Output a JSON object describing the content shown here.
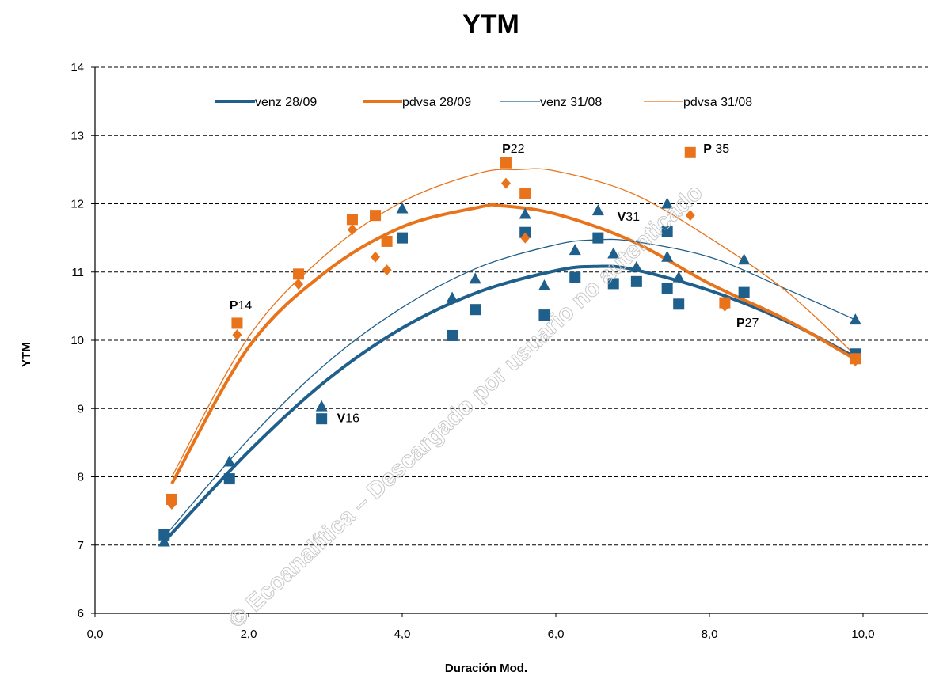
{
  "chart_data": {
    "type": "scatter",
    "title": "YTM",
    "xlabel": "Duración Mod.",
    "ylabel": "YTM",
    "xlim": [
      0,
      10.8
    ],
    "ylim": [
      6,
      14
    ],
    "xticks": [
      0,
      2,
      4,
      6,
      8,
      10
    ],
    "xtick_labels": [
      "0,0",
      "2,0",
      "4,0",
      "6,0",
      "8,0",
      "10,0"
    ],
    "yticks": [
      6,
      7,
      8,
      9,
      10,
      11,
      12,
      13,
      14
    ],
    "ytick_labels": [
      "6",
      "7",
      "8",
      "9",
      "10",
      "11",
      "12",
      "13",
      "14"
    ],
    "grid": "horizontal-dashed",
    "legend_position": "top",
    "colors": {
      "venz": "#1f5f8b",
      "pdvsa": "#e8731a"
    },
    "series": [
      {
        "name": "venz 28/09",
        "kind": "markers+trend",
        "marker": "square",
        "color": "#1f5f8b",
        "line_weight": "thick",
        "points": [
          [
            0.9,
            7.15
          ],
          [
            1.75,
            7.97
          ],
          [
            2.95,
            8.85
          ],
          [
            4.0,
            11.5
          ],
          [
            4.65,
            10.07
          ],
          [
            4.95,
            10.45
          ],
          [
            5.6,
            11.58
          ],
          [
            5.85,
            10.37
          ],
          [
            6.25,
            10.92
          ],
          [
            6.55,
            11.5
          ],
          [
            6.75,
            10.83
          ],
          [
            7.05,
            10.86
          ],
          [
            7.45,
            10.76
          ],
          [
            7.45,
            11.6
          ],
          [
            7.6,
            10.53
          ],
          [
            8.45,
            10.7
          ],
          [
            9.9,
            9.8
          ]
        ],
        "trend": {
          "x_range": [
            0.9,
            9.9
          ],
          "points": [
            [
              0.9,
              7.05
            ],
            [
              2.0,
              8.37
            ],
            [
              3.0,
              9.4
            ],
            [
              4.0,
              10.18
            ],
            [
              5.0,
              10.71
            ],
            [
              6.0,
              11.02
            ],
            [
              6.5,
              11.08
            ],
            [
              7.0,
              11.04
            ],
            [
              8.0,
              10.73
            ],
            [
              9.0,
              10.28
            ],
            [
              9.9,
              9.75
            ]
          ]
        }
      },
      {
        "name": "pdvsa 28/09",
        "kind": "markers+trend",
        "marker": "square",
        "color": "#e8731a",
        "line_weight": "thick",
        "points": [
          [
            1.0,
            7.67
          ],
          [
            1.85,
            10.25
          ],
          [
            2.65,
            10.97
          ],
          [
            3.35,
            11.77
          ],
          [
            3.65,
            11.83
          ],
          [
            3.8,
            11.45
          ],
          [
            5.35,
            12.6
          ],
          [
            5.6,
            12.15
          ],
          [
            7.75,
            12.75
          ],
          [
            8.2,
            10.55
          ],
          [
            9.9,
            9.73
          ]
        ],
        "trend": {
          "x_range": [
            1.0,
            9.9
          ],
          "points": [
            [
              1.0,
              7.9
            ],
            [
              2.0,
              9.9
            ],
            [
              3.0,
              11.0
            ],
            [
              4.0,
              11.66
            ],
            [
              5.0,
              11.95
            ],
            [
              5.3,
              11.97
            ],
            [
              6.0,
              11.85
            ],
            [
              7.0,
              11.45
            ],
            [
              8.0,
              10.83
            ],
            [
              9.0,
              10.3
            ],
            [
              9.9,
              9.72
            ]
          ]
        }
      },
      {
        "name": "venz 31/08",
        "kind": "markers+trend",
        "marker": "triangle",
        "color": "#1f5f8b",
        "line_weight": "thin",
        "points": [
          [
            0.9,
            7.05
          ],
          [
            1.75,
            8.22
          ],
          [
            2.95,
            9.03
          ],
          [
            4.0,
            11.93
          ],
          [
            4.65,
            10.62
          ],
          [
            4.95,
            10.9
          ],
          [
            5.6,
            11.85
          ],
          [
            5.85,
            10.8
          ],
          [
            6.25,
            11.32
          ],
          [
            6.55,
            11.9
          ],
          [
            6.75,
            11.27
          ],
          [
            7.05,
            11.07
          ],
          [
            7.45,
            12.0
          ],
          [
            7.45,
            11.22
          ],
          [
            7.6,
            10.92
          ],
          [
            8.45,
            11.18
          ],
          [
            9.9,
            10.3
          ]
        ],
        "trend": {
          "x_range": [
            0.9,
            9.9
          ],
          "points": [
            [
              0.9,
              7.12
            ],
            [
              2.0,
              8.55
            ],
            [
              3.0,
              9.65
            ],
            [
              4.0,
              10.48
            ],
            [
              5.0,
              11.07
            ],
            [
              6.0,
              11.4
            ],
            [
              6.5,
              11.47
            ],
            [
              7.0,
              11.45
            ],
            [
              8.0,
              11.22
            ],
            [
              9.0,
              10.75
            ],
            [
              9.9,
              10.3
            ]
          ]
        }
      },
      {
        "name": "pdvsa 31/08",
        "kind": "markers+trend",
        "marker": "diamond",
        "color": "#e8731a",
        "line_weight": "thin",
        "points": [
          [
            1.0,
            7.6
          ],
          [
            1.85,
            10.08
          ],
          [
            2.65,
            10.82
          ],
          [
            3.35,
            11.62
          ],
          [
            3.65,
            11.22
          ],
          [
            3.8,
            11.03
          ],
          [
            5.35,
            12.3
          ],
          [
            5.6,
            11.5
          ],
          [
            7.75,
            11.83
          ],
          [
            8.2,
            10.5
          ],
          [
            9.9,
            9.7
          ]
        ],
        "trend": {
          "x_range": [
            1.0,
            9.9
          ],
          "points": [
            [
              1.0,
              8.0
            ],
            [
              2.0,
              10.05
            ],
            [
              3.0,
              11.25
            ],
            [
              4.0,
              12.03
            ],
            [
              5.0,
              12.45
            ],
            [
              5.5,
              12.5
            ],
            [
              6.0,
              12.48
            ],
            [
              7.0,
              12.15
            ],
            [
              8.0,
              11.5
            ],
            [
              9.0,
              10.72
            ],
            [
              9.9,
              9.78
            ]
          ]
        }
      }
    ],
    "annotations": [
      {
        "bold": "P",
        "text": "14",
        "x": 1.75,
        "y": 10.45
      },
      {
        "bold": "V",
        "text": "16",
        "x": 3.15,
        "y": 8.8
      },
      {
        "bold": "P",
        "text": "22",
        "x": 5.3,
        "y": 12.75
      },
      {
        "bold": "V",
        "text": "31",
        "x": 6.8,
        "y": 11.75
      },
      {
        "bold": "P",
        "text": " 35",
        "x": 7.92,
        "y": 12.75
      },
      {
        "bold": "P",
        "text": "27",
        "x": 8.35,
        "y": 10.2
      }
    ]
  },
  "watermark": "© Ecoanalítica – Descargado por usuario no autenticado"
}
